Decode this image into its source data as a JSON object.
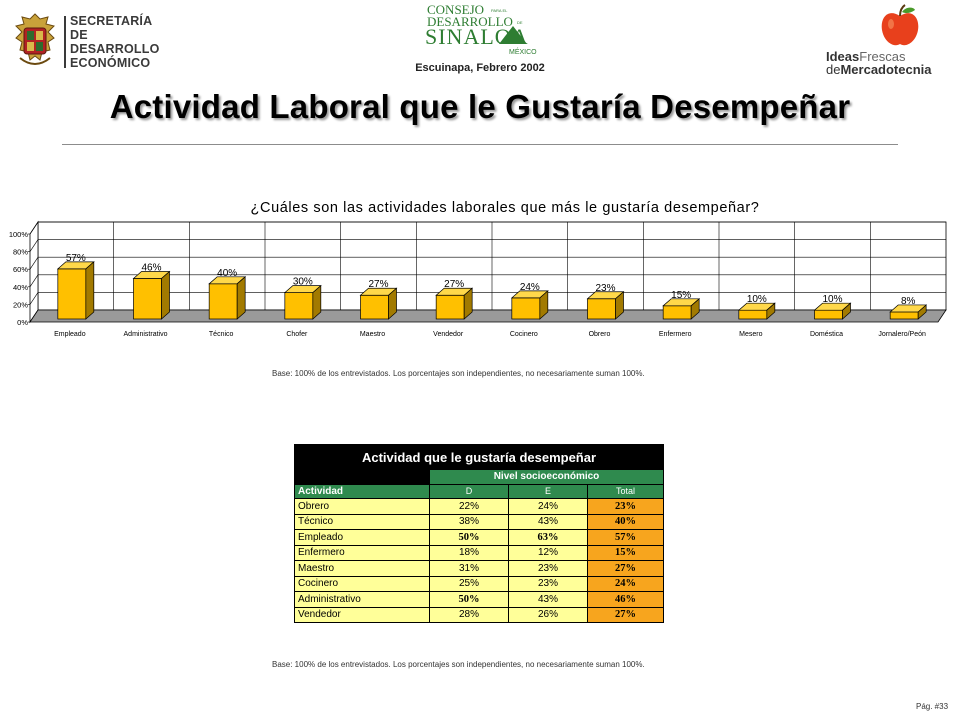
{
  "header": {
    "secretaria_lines": [
      "SECRETARÍA",
      "DE DESARROLLO",
      "ECONÓMICO"
    ],
    "consejo_logo_text": [
      "CONSEJO",
      "PARA EL",
      "DESARROLLO",
      "DE",
      "SINALOA",
      "MÉXICO"
    ],
    "location_date": "Escuinapa, Febrero 2002",
    "ideas_prefix": "Ideas",
    "ideas_suffix": "Frescas",
    "merca_prefix": "de",
    "merca_suffix": "Mercadotecnia"
  },
  "page_title": "Actividad Laboral que le Gustaría Desempeñar",
  "chart_data": {
    "type": "bar",
    "title": "¿Cuáles son las actividades laborales que más le gustaría desempeñar?",
    "categories": [
      "Empleado",
      "Administrativo",
      "Técnico",
      "Chofer",
      "Maestro",
      "Vendedor",
      "Cocinero",
      "Obrero",
      "Enfermero",
      "Mesero",
      "Doméstica",
      "Jornalero/Peón"
    ],
    "values": [
      57,
      46,
      40,
      30,
      27,
      27,
      24,
      23,
      15,
      10,
      10,
      8
    ],
    "value_labels": [
      "57%",
      "46%",
      "40%",
      "30%",
      "27%",
      "27%",
      "24%",
      "23%",
      "15%",
      "10%",
      "10%",
      "8%"
    ],
    "ylim": [
      0,
      100
    ],
    "yticks": [
      "0%",
      "20%",
      "40%",
      "60%",
      "80%",
      "100%"
    ],
    "xlabel": "",
    "ylabel": "",
    "grid": true,
    "bar_color": "#ffc000",
    "bar_dark": "#a27a00"
  },
  "chart_base_note": "Base:   100% de los entrevistados. Los porcentajes son  independientes, no necesariamente suman 100%.",
  "table": {
    "title": "Actividad que le gustaría desempeñar",
    "group_header": "Nivel socioeconómico",
    "row_header": "Actividad",
    "columns": [
      "D",
      "E",
      "Total"
    ],
    "rows": [
      {
        "label": "Obrero",
        "d": "22%",
        "e": "24%",
        "total": "23%"
      },
      {
        "label": "Técnico",
        "d": "38%",
        "e": "43%",
        "total": "40%"
      },
      {
        "label": "Empleado",
        "d": "50%",
        "e": "63%",
        "total": "57%"
      },
      {
        "label": "Enfermero",
        "d": "18%",
        "e": "12%",
        "total": "15%"
      },
      {
        "label": "Maestro",
        "d": "31%",
        "e": "23%",
        "total": "27%"
      },
      {
        "label": "Cocinero",
        "d": "25%",
        "e": "23%",
        "total": "24%"
      },
      {
        "label": "Administrativo",
        "d": "50%",
        "e": "43%",
        "total": "46%"
      },
      {
        "label": "Vendedor",
        "d": "28%",
        "e": "26%",
        "total": "27%"
      }
    ]
  },
  "table_base_note": "Base:   100% de los entrevistados. Los porcentajes son  independientes, no necesariamente suman 100%.",
  "page_number": "Pág. #33",
  "colors": {
    "table_header_green": "#2f8a4e",
    "table_cell_yellow": "#ffff99",
    "table_total_orange": "#f7a51e"
  }
}
